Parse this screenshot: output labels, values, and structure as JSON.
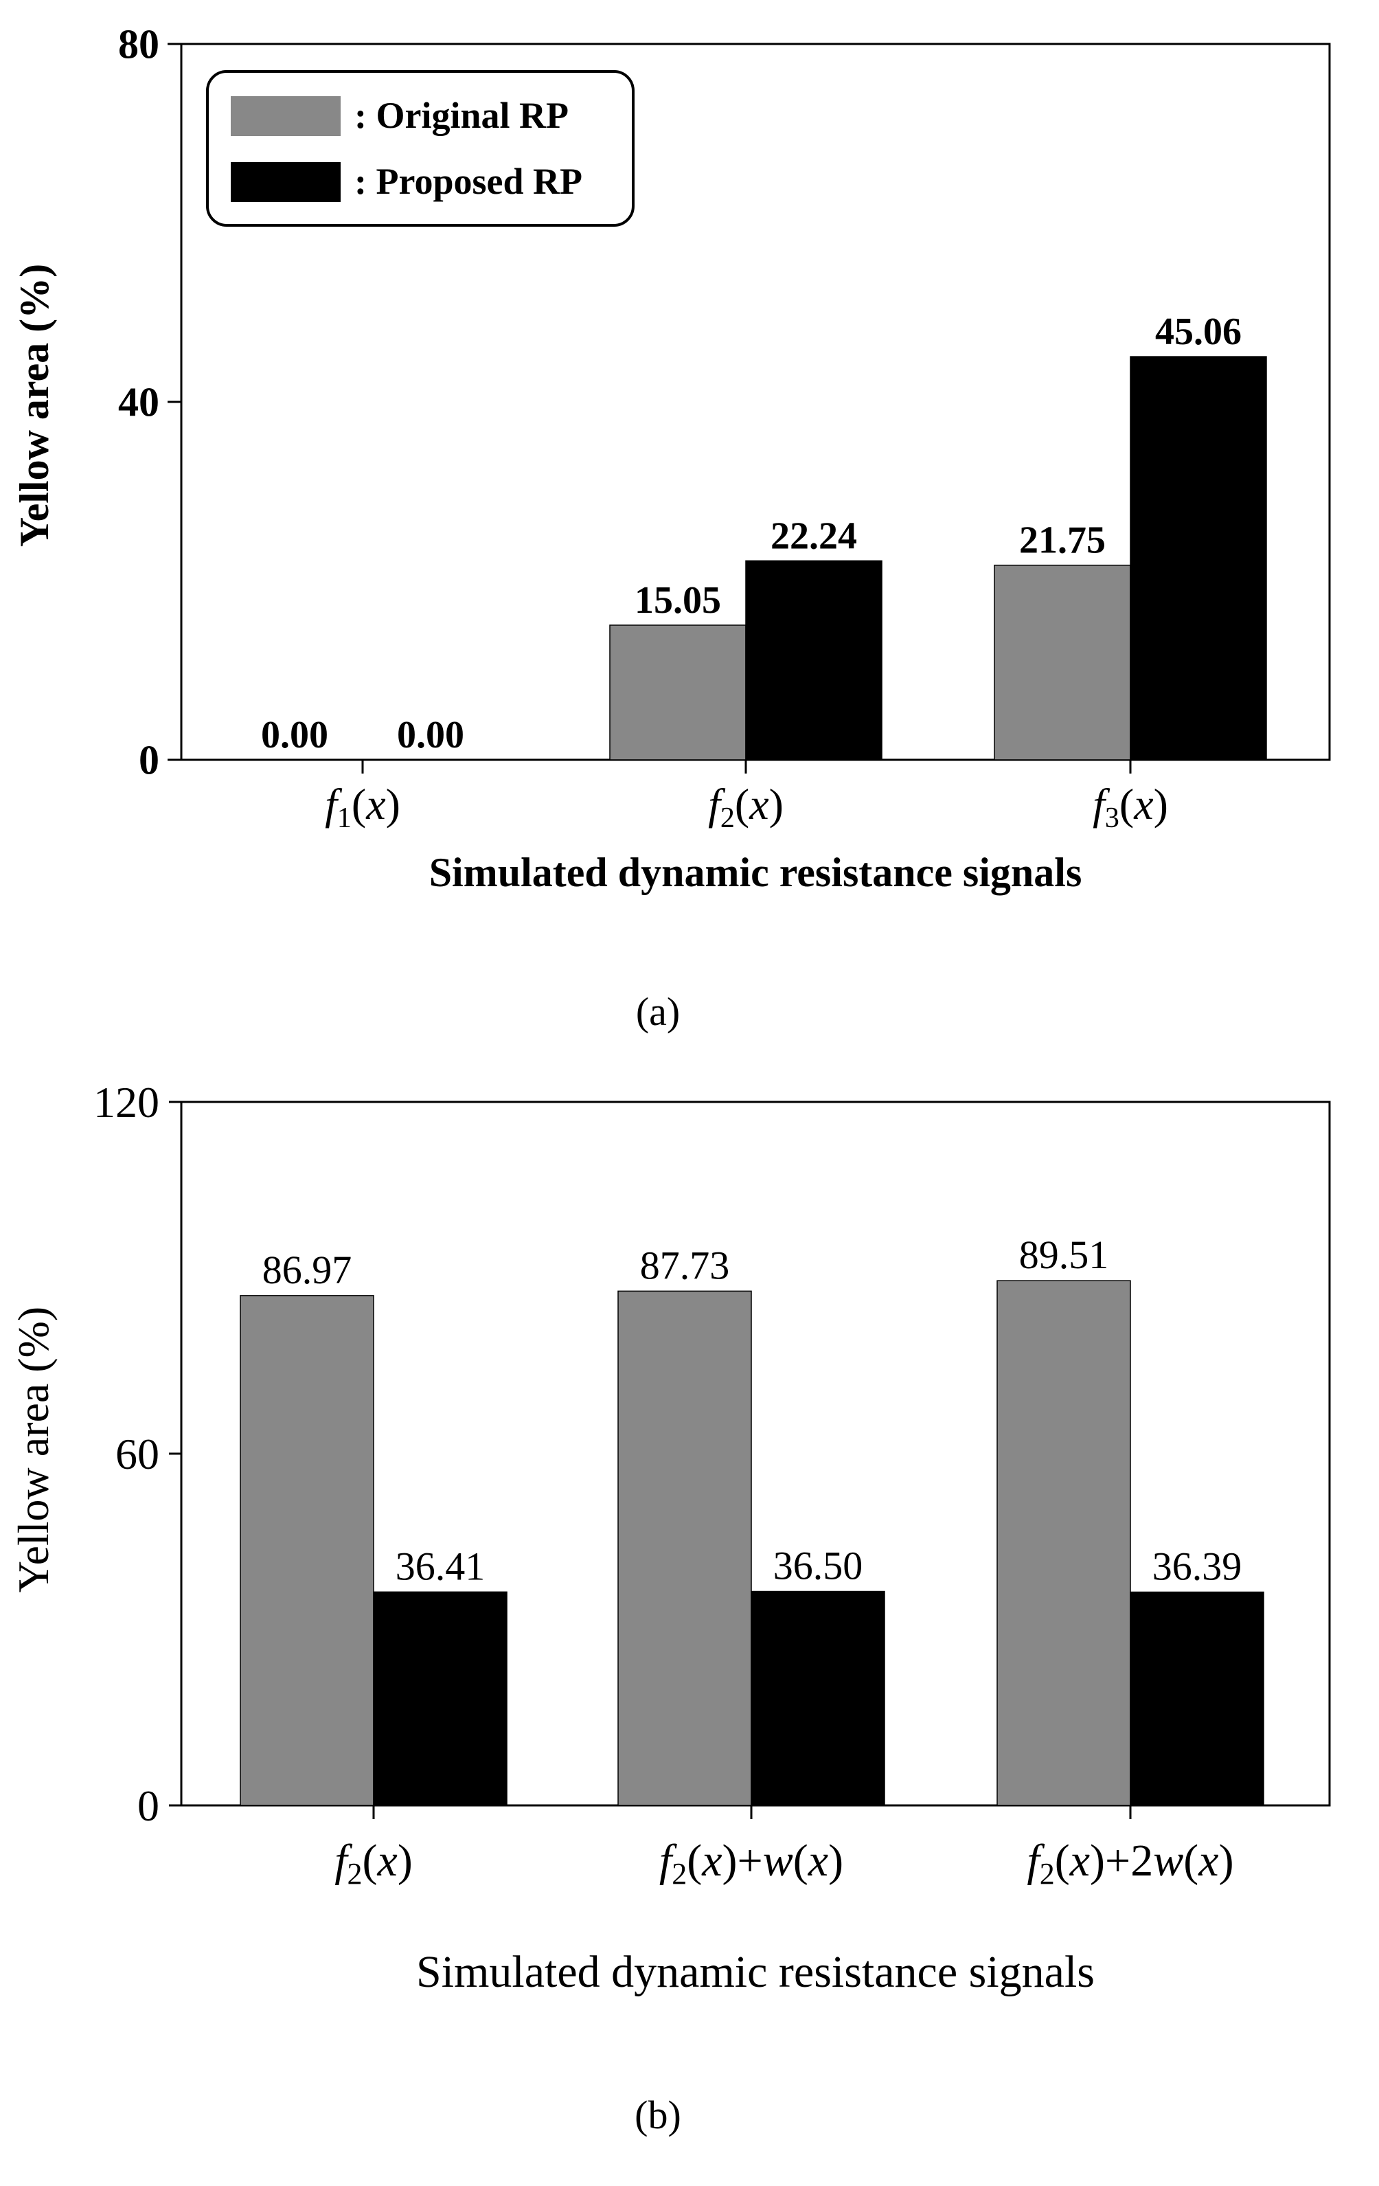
{
  "colors": {
    "original": "#888888",
    "proposed": "#000000"
  },
  "chart_data": [
    {
      "panel": "(a)",
      "type": "bar",
      "categories": [
        {
          "fn": "f",
          "sub": "1",
          "arg": "x"
        },
        {
          "fn": "f",
          "sub": "2",
          "arg": "x"
        },
        {
          "fn": "f",
          "sub": "3",
          "arg": "x"
        }
      ],
      "series": [
        {
          "name": ": Original RP",
          "values": [
            0.0,
            15.05,
            21.75
          ],
          "labels": [
            "0.00",
            "15.05",
            "21.75"
          ]
        },
        {
          "name": ": Proposed RP",
          "values": [
            0.0,
            22.24,
            45.06
          ],
          "labels": [
            "0.00",
            "22.24",
            "45.06"
          ]
        }
      ],
      "ylabel": "Yellow  area (%)",
      "xlabel": "Simulated  dynamic  resistance signals",
      "ylim": [
        0,
        80
      ],
      "yticks": [
        "0",
        "40",
        "80"
      ],
      "legend": "top-left"
    },
    {
      "panel": "(b)",
      "type": "bar",
      "categories": [
        {
          "fn": "f",
          "sub": "2",
          "arg": "x"
        },
        {
          "fn": "f",
          "sub": "2",
          "arg": "x",
          "suffix": "+w(x)"
        },
        {
          "fn": "f",
          "sub": "2",
          "arg": "x",
          "suffix": "+2w(x)"
        }
      ],
      "series": [
        {
          "name": "Original RP",
          "values": [
            86.97,
            87.73,
            89.51
          ],
          "labels": [
            "86.97",
            "87.73",
            "89.51"
          ]
        },
        {
          "name": "Proposed RP",
          "values": [
            36.41,
            36.5,
            36.39
          ],
          "labels": [
            "36.41",
            "36.50",
            "36.39"
          ]
        }
      ],
      "ylabel": "Yellow area (%)",
      "xlabel": "Simulated dynamic resistance signals",
      "ylim": [
        0,
        120
      ],
      "yticks": [
        "0",
        "60",
        "120"
      ],
      "legend": "none"
    }
  ]
}
